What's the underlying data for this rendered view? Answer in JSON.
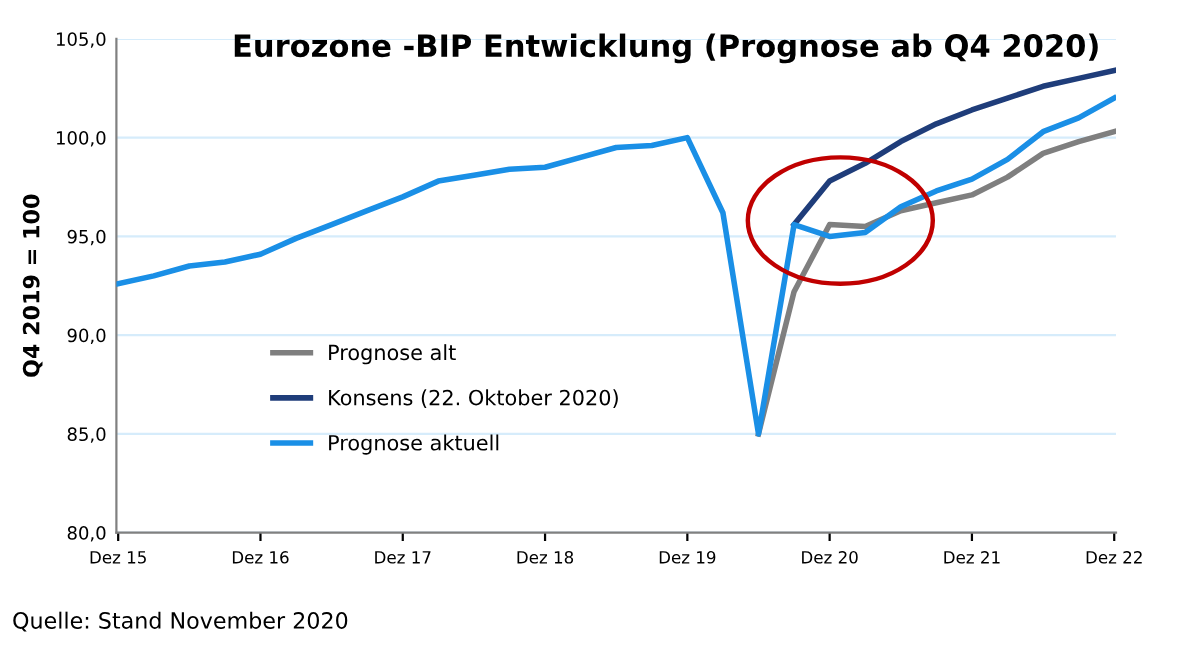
{
  "chart_data": {
    "type": "line",
    "title": "Eurozone -BIP Entwicklung (Prognose ab Q4 2020)",
    "ylabel": "Q4 2019 = 100",
    "categories": [
      "Dez 15",
      null,
      null,
      null,
      "Dez 16",
      null,
      null,
      null,
      "Dez 17",
      null,
      null,
      null,
      "Dez 18",
      null,
      null,
      null,
      "Dez 19",
      null,
      null,
      null,
      "Dez 20",
      null,
      null,
      null,
      "Dez 21",
      null,
      null,
      null,
      "Dez 22"
    ],
    "series": [
      {
        "name": "Prognose alt",
        "color": "#7f7f7f",
        "values": [
          null,
          null,
          null,
          null,
          null,
          null,
          null,
          null,
          null,
          null,
          null,
          null,
          null,
          null,
          null,
          null,
          null,
          null,
          85.0,
          92.2,
          95.6,
          95.5,
          96.3,
          96.7,
          97.1,
          98.0,
          99.2,
          99.8,
          100.3
        ]
      },
      {
        "name": "Konsens (22. Oktober 2020)",
        "color": "#1f3d7a",
        "values": [
          null,
          null,
          null,
          null,
          null,
          null,
          null,
          null,
          null,
          null,
          null,
          null,
          null,
          null,
          null,
          null,
          null,
          null,
          null,
          95.6,
          97.8,
          98.7,
          99.8,
          100.7,
          101.4,
          102.0,
          102.6,
          103.0,
          103.4
        ]
      },
      {
        "name": "Prognose aktuell",
        "color": "#1a8fe6",
        "values": [
          92.6,
          93.0,
          93.5,
          93.7,
          94.1,
          94.9,
          95.6,
          96.3,
          97.0,
          97.8,
          98.1,
          98.4,
          98.5,
          99.0,
          99.5,
          99.6,
          100.0,
          96.2,
          85.0,
          95.6,
          95.0,
          95.2,
          96.5,
          97.3,
          97.9,
          98.9,
          100.3,
          101.0,
          102.0
        ]
      }
    ],
    "ylim": [
      80,
      105
    ],
    "yticks": [
      {
        "value": 80,
        "label": "80,0"
      },
      {
        "value": 85,
        "label": "85,0"
      },
      {
        "value": 90,
        "label": "90,0"
      },
      {
        "value": 95,
        "label": "95,0"
      },
      {
        "value": 100,
        "label": "100,0"
      },
      {
        "value": 105,
        "label": "105,0"
      }
    ],
    "grid": "y",
    "legend": "bottom",
    "marker": "none",
    "line_style": "solid",
    "annotations": [
      "Quelle: Stand November 2020"
    ]
  }
}
